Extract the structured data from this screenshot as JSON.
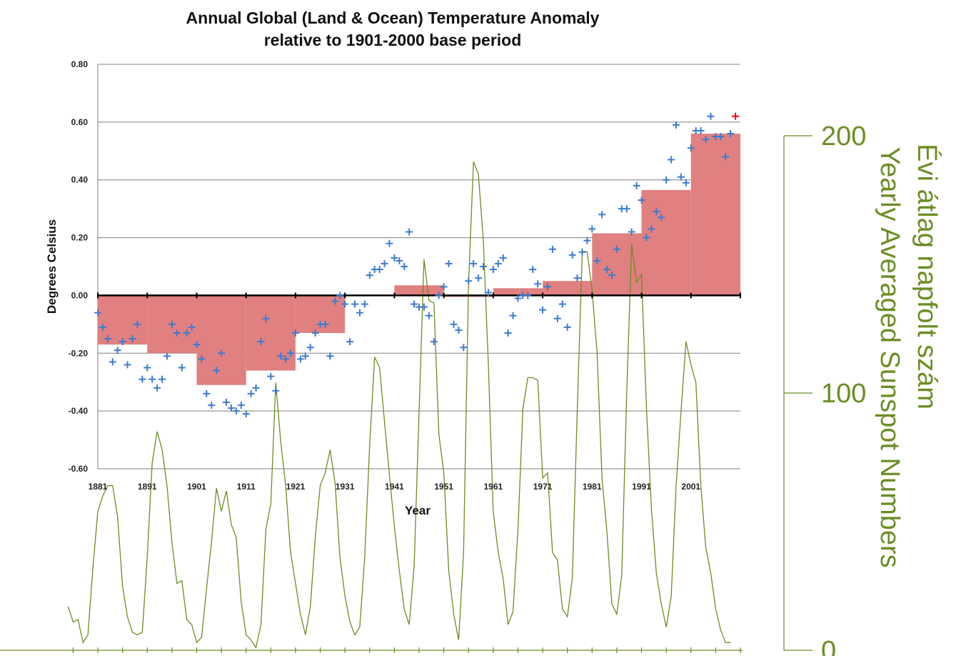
{
  "colors": {
    "decade_bar": "#e08080",
    "marker": "#3b7bd1",
    "latest_marker": "#ff0000",
    "sunspot": "#6b8e23",
    "grid": "#808080",
    "zero_line": "#000000"
  },
  "chart_data": [
    {
      "type": "bar+scatter",
      "title": "Annual Global (Land & Ocean) Temperature Anomaly",
      "subtitle": "relative to 1901-2000 base period",
      "xlabel": "Year",
      "ylabel": "Degrees Celsius",
      "xlim": [
        1881,
        2011
      ],
      "ylim": [
        -0.6,
        0.8
      ],
      "y_ticks": [
        "0.80",
        "0.60",
        "0.40",
        "0.20",
        "0.00",
        "-0.20",
        "-0.40",
        "-0.60"
      ],
      "x_ticks": [
        "1881",
        "1891",
        "1901",
        "1911",
        "1921",
        "1931",
        "1941",
        "1951",
        "1961",
        "1971",
        "1981",
        "1991",
        "2001"
      ],
      "grid": true,
      "decade_means": [
        {
          "start": 1881,
          "end": 1891,
          "value": -0.17
        },
        {
          "start": 1891,
          "end": 1901,
          "value": -0.2
        },
        {
          "start": 1901,
          "end": 1911,
          "value": -0.31
        },
        {
          "start": 1911,
          "end": 1921,
          "value": -0.26
        },
        {
          "start": 1921,
          "end": 1931,
          "value": -0.13
        },
        {
          "start": 1931,
          "end": 1941,
          "value": 0.0
        },
        {
          "start": 1941,
          "end": 1951,
          "value": 0.035
        },
        {
          "start": 1951,
          "end": 1961,
          "value": -0.005
        },
        {
          "start": 1961,
          "end": 1971,
          "value": 0.025
        },
        {
          "start": 1971,
          "end": 1981,
          "value": 0.05
        },
        {
          "start": 1981,
          "end": 1991,
          "value": 0.215
        },
        {
          "start": 1991,
          "end": 2001,
          "value": 0.365
        },
        {
          "start": 2001,
          "end": 2011,
          "value": 0.56
        }
      ],
      "annual": {
        "years": [
          1881,
          1882,
          1883,
          1884,
          1885,
          1886,
          1887,
          1888,
          1889,
          1890,
          1891,
          1892,
          1893,
          1894,
          1895,
          1896,
          1897,
          1898,
          1899,
          1900,
          1901,
          1902,
          1903,
          1904,
          1905,
          1906,
          1907,
          1908,
          1909,
          1910,
          1911,
          1912,
          1913,
          1914,
          1915,
          1916,
          1917,
          1918,
          1919,
          1920,
          1921,
          1922,
          1923,
          1924,
          1925,
          1926,
          1927,
          1928,
          1929,
          1930,
          1931,
          1932,
          1933,
          1934,
          1935,
          1936,
          1937,
          1938,
          1939,
          1940,
          1941,
          1942,
          1943,
          1944,
          1945,
          1946,
          1947,
          1948,
          1949,
          1950,
          1951,
          1952,
          1953,
          1954,
          1955,
          1956,
          1957,
          1958,
          1959,
          1960,
          1961,
          1962,
          1963,
          1964,
          1965,
          1966,
          1967,
          1968,
          1969,
          1970,
          1971,
          1972,
          1973,
          1974,
          1975,
          1976,
          1977,
          1978,
          1979,
          1980,
          1981,
          1982,
          1983,
          1984,
          1985,
          1986,
          1987,
          1988,
          1989,
          1990,
          1991,
          1992,
          1993,
          1994,
          1995,
          1996,
          1997,
          1998,
          1999,
          2000,
          2001,
          2002,
          2003,
          2004,
          2005,
          2006,
          2007,
          2008,
          2009
        ],
        "values": [
          -0.06,
          -0.11,
          -0.15,
          -0.23,
          -0.19,
          -0.16,
          -0.24,
          -0.15,
          -0.1,
          -0.29,
          -0.25,
          -0.29,
          -0.32,
          -0.29,
          -0.21,
          -0.1,
          -0.13,
          -0.25,
          -0.13,
          -0.11,
          -0.17,
          -0.22,
          -0.34,
          -0.38,
          -0.26,
          -0.2,
          -0.37,
          -0.39,
          -0.4,
          -0.38,
          -0.41,
          -0.34,
          -0.32,
          -0.16,
          -0.08,
          -0.28,
          -0.33,
          -0.21,
          -0.22,
          -0.2,
          -0.13,
          -0.22,
          -0.21,
          -0.18,
          -0.13,
          -0.1,
          -0.1,
          -0.21,
          -0.02,
          0.0,
          -0.03,
          -0.16,
          -0.03,
          -0.06,
          -0.03,
          0.07,
          0.09,
          0.09,
          0.11,
          0.18,
          0.13,
          0.12,
          0.1,
          0.22,
          -0.03,
          -0.04,
          -0.04,
          -0.07,
          -0.16,
          0.0,
          0.03,
          0.11,
          -0.1,
          -0.12,
          -0.18,
          0.05,
          0.11,
          0.06,
          0.1,
          0.01,
          0.09,
          0.11,
          0.13,
          -0.13,
          -0.07,
          -0.01,
          0.0,
          0.0,
          0.09,
          0.04,
          -0.05,
          0.03,
          0.16,
          -0.08,
          -0.03,
          -0.11,
          0.14,
          0.06,
          0.15,
          0.19,
          0.23,
          0.12,
          0.28,
          0.09,
          0.07,
          0.16,
          0.3,
          0.3,
          0.22,
          0.38,
          0.33,
          0.2,
          0.23,
          0.29,
          0.27,
          0.4,
          0.47,
          0.59,
          0.41,
          0.39,
          0.51,
          0.57,
          0.57,
          0.54,
          0.62,
          0.55,
          0.55,
          0.48,
          0.56
        ],
        "latest": {
          "year": 2010,
          "value": 0.62
        }
      }
    },
    {
      "type": "line",
      "ylabel": "Évi átlag napfolt szám",
      "ylabel2": "Yearly Averaged Sunspot Numbers",
      "ylim": [
        0,
        200
      ],
      "y_ticks": [
        "0",
        "100",
        "200"
      ],
      "xlim": [
        1881,
        2011
      ],
      "series": [
        {
          "x": [
            1875,
            1876,
            1877,
            1878,
            1879,
            1880,
            1881,
            1882,
            1883,
            1884,
            1885,
            1886,
            1887,
            1888,
            1889,
            1890,
            1891,
            1892,
            1893,
            1894,
            1895,
            1896,
            1897,
            1898,
            1899,
            1900,
            1901,
            1902,
            1903,
            1904,
            1905,
            1906,
            1907,
            1908,
            1909,
            1910,
            1911,
            1912,
            1913,
            1914,
            1915,
            1916,
            1917,
            1918,
            1919,
            1920,
            1921,
            1922,
            1923,
            1924,
            1925,
            1926,
            1927,
            1928,
            1929,
            1930,
            1931,
            1932,
            1933,
            1934,
            1935,
            1936,
            1937,
            1938,
            1939,
            1940,
            1941,
            1942,
            1943,
            1944,
            1945,
            1946,
            1947,
            1948,
            1949,
            1950,
            1951,
            1952,
            1953,
            1954,
            1955,
            1956,
            1957,
            1958,
            1959,
            1960,
            1961,
            1962,
            1963,
            1964,
            1965,
            1966,
            1967,
            1968,
            1969,
            1970,
            1971,
            1972,
            1973,
            1974,
            1975,
            1976,
            1977,
            1978,
            1979,
            1980,
            1981,
            1982,
            1983,
            1984,
            1985,
            1986,
            1987,
            1988,
            1989,
            1990,
            1991,
            1992,
            1993,
            1994,
            1995,
            1996,
            1997,
            1998,
            1999,
            2000,
            2001,
            2002,
            2003,
            2004,
            2005,
            2006,
            2007,
            2008,
            2009
          ],
          "values": [
            17,
            11,
            12,
            3,
            6,
            32,
            54,
            60,
            64,
            64,
            52,
            25,
            13,
            7,
            6,
            7,
            36,
            73,
            85,
            78,
            64,
            42,
            26,
            27,
            12,
            10,
            3,
            5,
            24,
            42,
            63,
            54,
            62,
            49,
            44,
            19,
            6,
            4,
            1,
            10,
            47,
            57,
            104,
            81,
            64,
            38,
            26,
            14,
            6,
            17,
            44,
            64,
            69,
            78,
            65,
            36,
            21,
            11,
            6,
            9,
            36,
            80,
            114,
            110,
            89,
            68,
            48,
            31,
            16,
            10,
            33,
            93,
            152,
            136,
            135,
            84,
            69,
            31,
            14,
            4,
            38,
            142,
            190,
            185,
            159,
            112,
            54,
            38,
            28,
            10,
            15,
            47,
            94,
            106,
            106,
            105,
            67,
            69,
            38,
            35,
            16,
            13,
            28,
            93,
            155,
            155,
            140,
            116,
            67,
            46,
            18,
            14,
            29,
            100,
            158,
            143,
            146,
            94,
            55,
            30,
            18,
            9,
            21,
            64,
            93,
            120,
            111,
            104,
            64,
            40,
            30,
            16,
            8,
            3,
            3
          ]
        }
      ]
    }
  ]
}
